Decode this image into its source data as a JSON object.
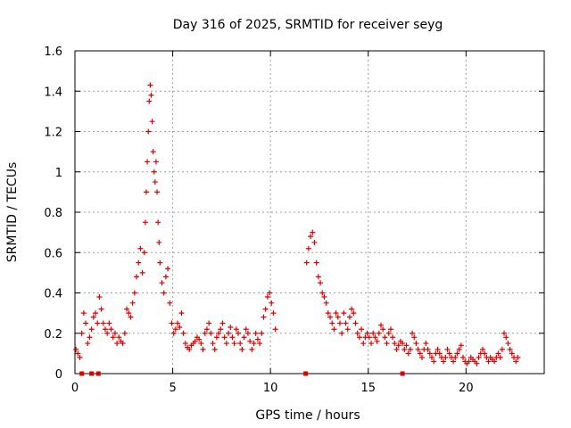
{
  "chart_data": {
    "type": "scatter",
    "title": "Day 316 of 2025, SRMTID for receiver seyg",
    "xlabel": "GPS time / hours",
    "ylabel": "SRMTID / TECUs",
    "xlim": [
      0,
      24
    ],
    "ylim": [
      0,
      1.6
    ],
    "x_ticks": [
      {
        "value": 0,
        "label": "0"
      },
      {
        "value": 5,
        "label": "5"
      },
      {
        "value": 10,
        "label": "10"
      },
      {
        "value": 15,
        "label": "15"
      },
      {
        "value": 20,
        "label": "20"
      }
    ],
    "y_ticks": [
      {
        "value": 0,
        "label": "0"
      },
      {
        "value": 0.2,
        "label": "0.2"
      },
      {
        "value": 0.4,
        "label": "0.4"
      },
      {
        "value": 0.6,
        "label": "0.6"
      },
      {
        "value": 0.8,
        "label": "0.8"
      },
      {
        "value": 1.0,
        "label": "1"
      },
      {
        "value": 1.2,
        "label": "1.2"
      },
      {
        "value": 1.4,
        "label": "1.4"
      },
      {
        "value": 1.6,
        "label": "1.6"
      }
    ],
    "grid": true,
    "marker": "plus",
    "color": "#dd0000",
    "series": [
      {
        "name": "SRMTID",
        "points": [
          [
            0.05,
            0.12
          ],
          [
            0.15,
            0.1
          ],
          [
            0.25,
            0.08
          ],
          [
            0.35,
            0.2
          ],
          [
            0.45,
            0.3
          ],
          [
            0.55,
            0.25
          ],
          [
            0.65,
            0.15
          ],
          [
            0.75,
            0.18
          ],
          [
            0.85,
            0.22
          ],
          [
            0.95,
            0.28
          ],
          [
            1.05,
            0.3
          ],
          [
            1.15,
            0.25
          ],
          [
            1.25,
            0.38
          ],
          [
            1.35,
            0.32
          ],
          [
            1.45,
            0.25
          ],
          [
            1.55,
            0.22
          ],
          [
            1.65,
            0.2
          ],
          [
            1.75,
            0.25
          ],
          [
            1.85,
            0.22
          ],
          [
            1.95,
            0.18
          ],
          [
            2.05,
            0.2
          ],
          [
            2.15,
            0.15
          ],
          [
            2.25,
            0.18
          ],
          [
            2.35,
            0.16
          ],
          [
            2.45,
            0.15
          ],
          [
            2.55,
            0.2
          ],
          [
            2.65,
            0.32
          ],
          [
            2.75,
            0.3
          ],
          [
            2.85,
            0.28
          ],
          [
            2.95,
            0.35
          ],
          [
            3.05,
            0.4
          ],
          [
            3.15,
            0.48
          ],
          [
            3.25,
            0.55
          ],
          [
            3.35,
            0.62
          ],
          [
            3.45,
            0.5
          ],
          [
            3.55,
            0.6
          ],
          [
            3.6,
            0.75
          ],
          [
            3.65,
            0.9
          ],
          [
            3.7,
            1.05
          ],
          [
            3.75,
            1.2
          ],
          [
            3.8,
            1.35
          ],
          [
            3.85,
            1.43
          ],
          [
            3.9,
            1.38
          ],
          [
            3.95,
            1.25
          ],
          [
            4.0,
            1.1
          ],
          [
            4.05,
            1.0
          ],
          [
            4.1,
            0.95
          ],
          [
            4.15,
            1.05
          ],
          [
            4.2,
            0.9
          ],
          [
            4.25,
            0.75
          ],
          [
            4.3,
            0.65
          ],
          [
            4.35,
            0.55
          ],
          [
            4.45,
            0.45
          ],
          [
            4.55,
            0.4
          ],
          [
            4.65,
            0.48
          ],
          [
            4.75,
            0.52
          ],
          [
            4.85,
            0.35
          ],
          [
            4.95,
            0.25
          ],
          [
            5.05,
            0.2
          ],
          [
            5.15,
            0.22
          ],
          [
            5.25,
            0.25
          ],
          [
            5.35,
            0.23
          ],
          [
            5.45,
            0.3
          ],
          [
            5.55,
            0.2
          ],
          [
            5.65,
            0.15
          ],
          [
            5.75,
            0.13
          ],
          [
            5.85,
            0.12
          ],
          [
            5.95,
            0.14
          ],
          [
            6.05,
            0.15
          ],
          [
            6.15,
            0.16
          ],
          [
            6.25,
            0.18
          ],
          [
            6.35,
            0.17
          ],
          [
            6.45,
            0.15
          ],
          [
            6.55,
            0.12
          ],
          [
            6.65,
            0.2
          ],
          [
            6.75,
            0.22
          ],
          [
            6.85,
            0.25
          ],
          [
            6.95,
            0.2
          ],
          [
            7.05,
            0.15
          ],
          [
            7.15,
            0.12
          ],
          [
            7.25,
            0.18
          ],
          [
            7.35,
            0.2
          ],
          [
            7.45,
            0.22
          ],
          [
            7.55,
            0.25
          ],
          [
            7.65,
            0.18
          ],
          [
            7.75,
            0.15
          ],
          [
            7.85,
            0.2
          ],
          [
            7.95,
            0.23
          ],
          [
            8.05,
            0.18
          ],
          [
            8.15,
            0.15
          ],
          [
            8.25,
            0.22
          ],
          [
            8.35,
            0.2
          ],
          [
            8.45,
            0.15
          ],
          [
            8.55,
            0.12
          ],
          [
            8.65,
            0.18
          ],
          [
            8.75,
            0.22
          ],
          [
            8.85,
            0.2
          ],
          [
            8.95,
            0.16
          ],
          [
            9.05,
            0.12
          ],
          [
            9.15,
            0.15
          ],
          [
            9.25,
            0.2
          ],
          [
            9.35,
            0.17
          ],
          [
            9.45,
            0.15
          ],
          [
            9.55,
            0.2
          ],
          [
            9.65,
            0.28
          ],
          [
            9.75,
            0.32
          ],
          [
            9.85,
            0.38
          ],
          [
            9.95,
            0.4
          ],
          [
            10.05,
            0.35
          ],
          [
            10.15,
            0.3
          ],
          [
            10.25,
            0.22
          ],
          [
            11.85,
            0.55
          ],
          [
            11.95,
            0.62
          ],
          [
            12.05,
            0.68
          ],
          [
            12.15,
            0.7
          ],
          [
            12.25,
            0.65
          ],
          [
            12.35,
            0.55
          ],
          [
            12.45,
            0.48
          ],
          [
            12.55,
            0.45
          ],
          [
            12.65,
            0.4
          ],
          [
            12.75,
            0.38
          ],
          [
            12.85,
            0.35
          ],
          [
            12.95,
            0.3
          ],
          [
            13.05,
            0.28
          ],
          [
            13.15,
            0.25
          ],
          [
            13.25,
            0.22
          ],
          [
            13.35,
            0.3
          ],
          [
            13.45,
            0.28
          ],
          [
            13.55,
            0.25
          ],
          [
            13.65,
            0.2
          ],
          [
            13.75,
            0.3
          ],
          [
            13.85,
            0.25
          ],
          [
            13.95,
            0.22
          ],
          [
            14.05,
            0.28
          ],
          [
            14.15,
            0.32
          ],
          [
            14.25,
            0.3
          ],
          [
            14.35,
            0.25
          ],
          [
            14.45,
            0.2
          ],
          [
            14.55,
            0.18
          ],
          [
            14.65,
            0.22
          ],
          [
            14.75,
            0.15
          ],
          [
            14.85,
            0.18
          ],
          [
            14.95,
            0.2
          ],
          [
            15.05,
            0.18
          ],
          [
            15.15,
            0.15
          ],
          [
            15.25,
            0.2
          ],
          [
            15.35,
            0.18
          ],
          [
            15.45,
            0.16
          ],
          [
            15.55,
            0.2
          ],
          [
            15.65,
            0.24
          ],
          [
            15.75,
            0.22
          ],
          [
            15.85,
            0.18
          ],
          [
            15.95,
            0.15
          ],
          [
            16.05,
            0.2
          ],
          [
            16.15,
            0.22
          ],
          [
            16.25,
            0.18
          ],
          [
            16.35,
            0.15
          ],
          [
            16.45,
            0.12
          ],
          [
            16.55,
            0.14
          ],
          [
            16.65,
            0.16
          ],
          [
            16.75,
            0.15
          ],
          [
            16.85,
            0.12
          ],
          [
            16.95,
            0.14
          ],
          [
            17.05,
            0.1
          ],
          [
            17.15,
            0.12
          ],
          [
            17.25,
            0.2
          ],
          [
            17.35,
            0.18
          ],
          [
            17.45,
            0.15
          ],
          [
            17.55,
            0.12
          ],
          [
            17.65,
            0.1
          ],
          [
            17.75,
            0.08
          ],
          [
            17.85,
            0.12
          ],
          [
            17.95,
            0.15
          ],
          [
            18.05,
            0.12
          ],
          [
            18.15,
            0.1
          ],
          [
            18.25,
            0.08
          ],
          [
            18.35,
            0.06
          ],
          [
            18.45,
            0.1
          ],
          [
            18.55,
            0.12
          ],
          [
            18.65,
            0.1
          ],
          [
            18.75,
            0.08
          ],
          [
            18.85,
            0.06
          ],
          [
            18.95,
            0.08
          ],
          [
            19.05,
            0.12
          ],
          [
            19.15,
            0.1
          ],
          [
            19.25,
            0.08
          ],
          [
            19.35,
            0.06
          ],
          [
            19.45,
            0.08
          ],
          [
            19.55,
            0.1
          ],
          [
            19.65,
            0.12
          ],
          [
            19.75,
            0.14
          ],
          [
            19.85,
            0.08
          ],
          [
            19.95,
            0.06
          ],
          [
            20.05,
            0.05
          ],
          [
            20.15,
            0.06
          ],
          [
            20.25,
            0.08
          ],
          [
            20.35,
            0.07
          ],
          [
            20.45,
            0.06
          ],
          [
            20.55,
            0.05
          ],
          [
            20.65,
            0.08
          ],
          [
            20.75,
            0.1
          ],
          [
            20.85,
            0.12
          ],
          [
            20.95,
            0.1
          ],
          [
            21.05,
            0.08
          ],
          [
            21.15,
            0.06
          ],
          [
            21.25,
            0.08
          ],
          [
            21.35,
            0.07
          ],
          [
            21.45,
            0.06
          ],
          [
            21.55,
            0.08
          ],
          [
            21.65,
            0.1
          ],
          [
            21.75,
            0.08
          ],
          [
            21.85,
            0.12
          ],
          [
            21.95,
            0.2
          ],
          [
            22.05,
            0.18
          ],
          [
            22.15,
            0.15
          ],
          [
            22.25,
            0.12
          ],
          [
            22.35,
            0.1
          ],
          [
            22.45,
            0.08
          ],
          [
            22.55,
            0.06
          ],
          [
            22.65,
            0.08
          ]
        ]
      },
      {
        "name": "zero-level markers",
        "marker": "square",
        "points": [
          [
            0.35,
            0
          ],
          [
            0.85,
            0
          ],
          [
            1.2,
            0
          ],
          [
            11.8,
            0
          ],
          [
            16.75,
            0
          ]
        ]
      }
    ]
  }
}
